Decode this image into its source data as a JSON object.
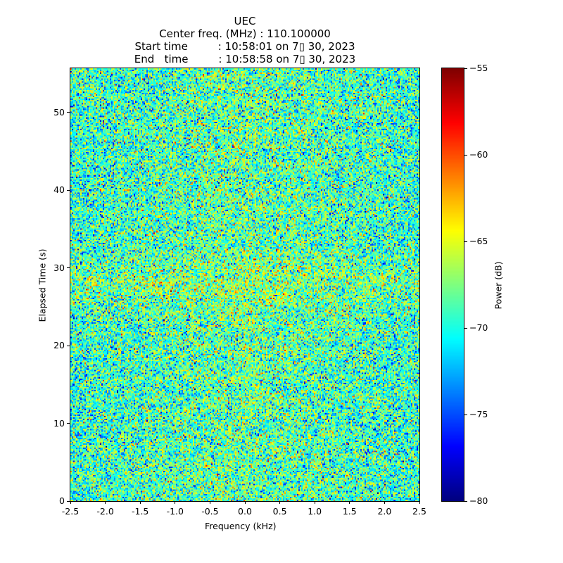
{
  "title_lines": [
    "UEC",
    "Center freq. (MHz) : 110.100000",
    "Start time         : 10:58:01 on 7▯ 30, 2023",
    "End   time         : 10:58:58 on 7▯ 30, 2023"
  ],
  "chart_data": {
    "type": "heatmap",
    "title": "UEC / Center freq. (MHz) : 110.100000",
    "xlabel": "Frequency (kHz)",
    "ylabel": "Elapsed Time (s)",
    "xlim": [
      -2.5,
      2.5
    ],
    "ylim": [
      0,
      55.7
    ],
    "xticks": [
      "-2.5",
      "-2.0",
      "-1.5",
      "-1.0",
      "-0.5",
      "0.0",
      "0.5",
      "1.0",
      "1.5",
      "2.0",
      "2.5"
    ],
    "yticks": [
      "0",
      "10",
      "20",
      "30",
      "40",
      "50"
    ],
    "colorbar": {
      "label": "Power (dB)",
      "range": [
        -80,
        -55
      ],
      "ticks": [
        "−80",
        "−75",
        "−70",
        "−65",
        "−60",
        "−55"
      ],
      "colormap": "jet"
    },
    "values_description": "random noise, mean approx -69 dB, slightly higher near 0 kHz and around 28 s",
    "noise_mean_db": -69.5,
    "noise_std_db": 3.2,
    "grid": false
  }
}
